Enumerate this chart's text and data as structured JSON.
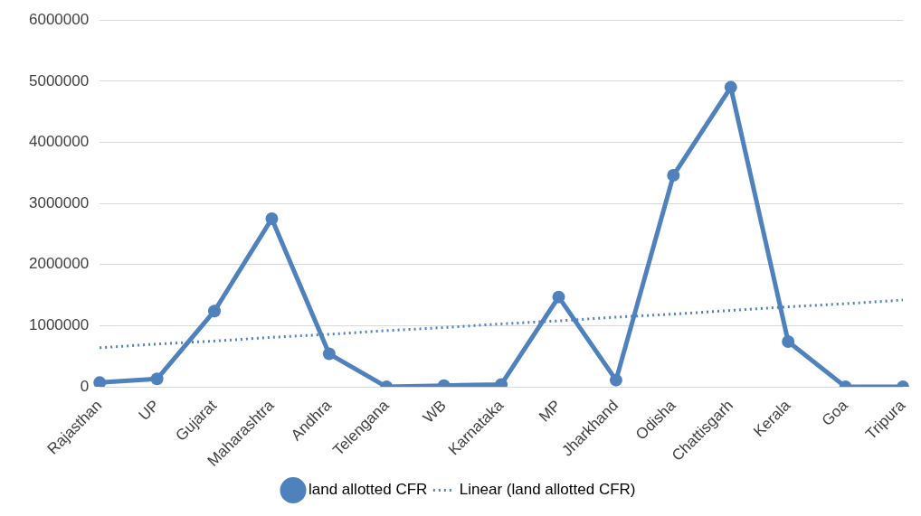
{
  "chart_data": {
    "type": "line",
    "categories": [
      "Rajasthan",
      "UP",
      "Gujarat",
      "Maharashtra",
      "Andhra",
      "Telengana",
      "WB",
      "Karnataka",
      "MP",
      "Jharkhand",
      "Odisha",
      "Chattisgarh",
      "Kerala",
      "Goa",
      "Tripura"
    ],
    "series": [
      {
        "name": "land allotted CFR",
        "color": "#4f81bd",
        "marker": "circle",
        "line_style": "solid",
        "values": [
          70000,
          130000,
          1240000,
          2750000,
          540000,
          0,
          20000,
          40000,
          1470000,
          110000,
          3460000,
          4900000,
          740000,
          0,
          0
        ]
      },
      {
        "name": "Linear (land allotted CFR)",
        "color": "#4f81bd",
        "marker": "none",
        "line_style": "dotted",
        "values": [
          640000,
          700000,
          750000,
          810000,
          860000,
          920000,
          970000,
          1030000,
          1080000,
          1140000,
          1190000,
          1250000,
          1310000,
          1360000,
          1420000
        ]
      }
    ],
    "ylim": [
      0,
      6000000
    ],
    "yticks": [
      0,
      1000000,
      2000000,
      3000000,
      4000000,
      5000000,
      6000000
    ],
    "grid": "y",
    "legend": "bottom"
  }
}
